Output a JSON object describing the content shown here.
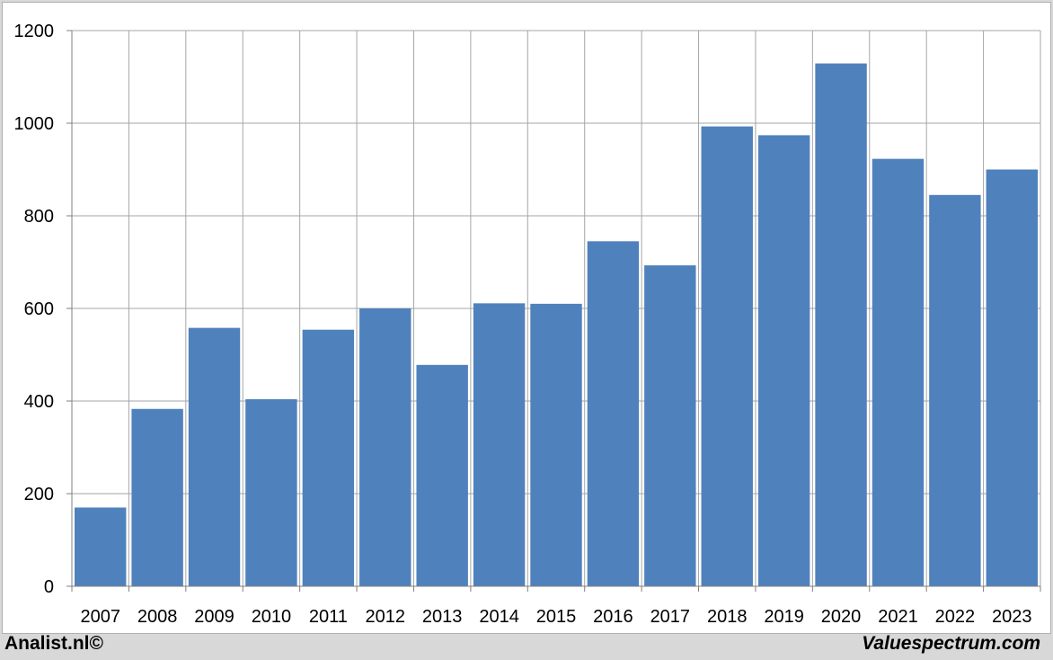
{
  "chart_data": {
    "type": "bar",
    "categories": [
      "2007",
      "2008",
      "2009",
      "2010",
      "2011",
      "2012",
      "2013",
      "2014",
      "2015",
      "2016",
      "2017",
      "2018",
      "2019",
      "2020",
      "2021",
      "2022",
      "2023"
    ],
    "values": [
      170,
      383,
      558,
      404,
      554,
      600,
      478,
      611,
      610,
      745,
      693,
      993,
      974,
      1129,
      923,
      845,
      900
    ],
    "y_ticks": [
      0,
      200,
      400,
      600,
      800,
      1000,
      1200
    ],
    "ylim": [
      0,
      1200
    ],
    "grid": true,
    "bar_color": "#4f81bd",
    "grid_color": "#a6a6a6"
  },
  "footer": {
    "left": "Analist.nl©",
    "right": "Valuespectrum.com"
  }
}
